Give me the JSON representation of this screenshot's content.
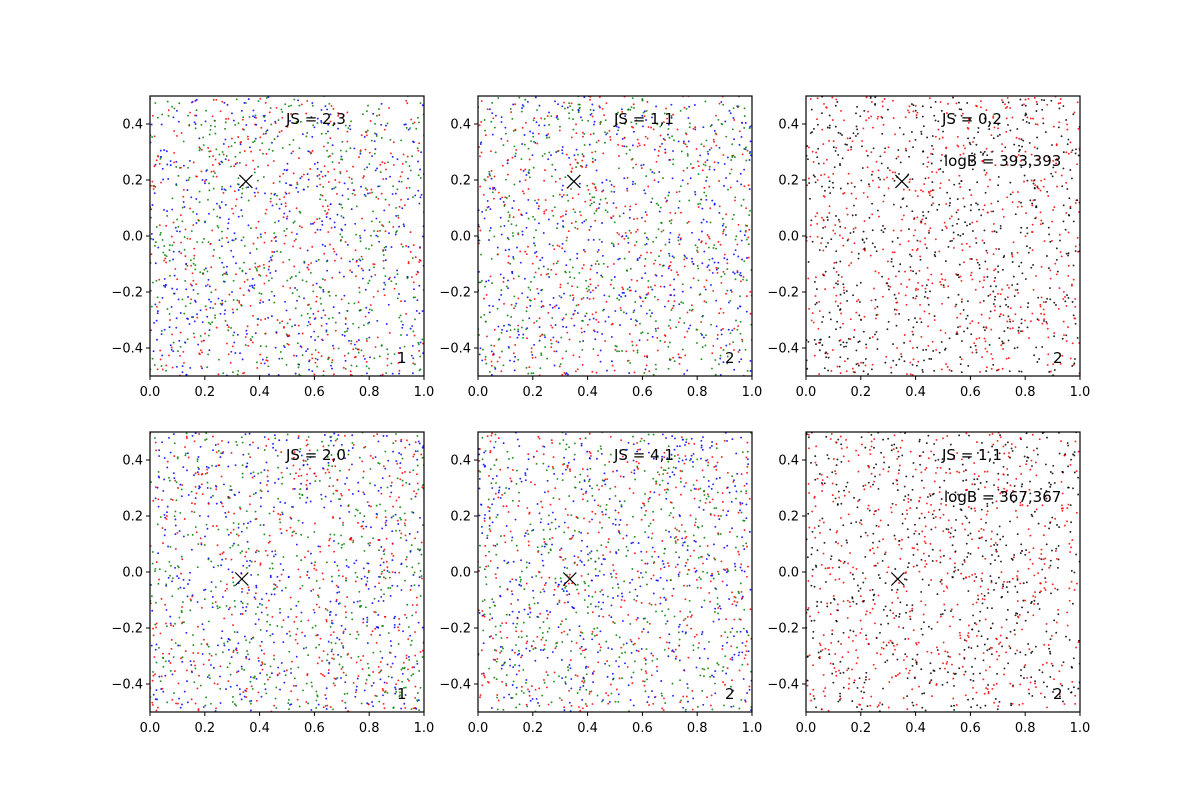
{
  "colors": {
    "series_a": "#ff0000",
    "series_b": "#0000ff",
    "series_c": "#008000",
    "series_d": "#000000",
    "marker": "#000000",
    "frame": "#000000",
    "background": "#ffffff"
  },
  "chart_data": [
    {
      "type": "scatter",
      "panel": "row1-col1",
      "xlim": [
        0.0,
        1.0
      ],
      "ylim": [
        -0.5,
        0.5
      ],
      "x_ticks": [
        0.0,
        0.2,
        0.4,
        0.6,
        0.8,
        1.0
      ],
      "x_tick_labels": [
        "0.0",
        "0.2",
        "0.4",
        "0.6",
        "0.8",
        "1.0"
      ],
      "y_ticks": [
        -0.4,
        -0.2,
        0.0,
        0.2,
        0.4
      ],
      "y_tick_labels": [
        "−0.4",
        "−0.2",
        "0.0",
        "0.2",
        "0.4"
      ],
      "grid": false,
      "point_colors": [
        "#ff0000",
        "#0000ff",
        "#008000"
      ],
      "approx_points": 1500,
      "marker_point": {
        "x": 0.35,
        "y": 0.195,
        "symbol": "x"
      },
      "annotations": {
        "js": "JS = 2,3",
        "logb": "",
        "corner": "1"
      }
    },
    {
      "type": "scatter",
      "panel": "row1-col2",
      "xlim": [
        0.0,
        1.0
      ],
      "ylim": [
        -0.5,
        0.5
      ],
      "x_ticks": [
        0.0,
        0.2,
        0.4,
        0.6,
        0.8,
        1.0
      ],
      "x_tick_labels": [
        "0.0",
        "0.2",
        "0.4",
        "0.6",
        "0.8",
        "1.0"
      ],
      "y_ticks": [
        -0.4,
        -0.2,
        0.0,
        0.2,
        0.4
      ],
      "y_tick_labels": [
        "−0.4",
        "−0.2",
        "0.0",
        "0.2",
        "0.4"
      ],
      "grid": false,
      "point_colors": [
        "#ff0000",
        "#0000ff",
        "#008000"
      ],
      "approx_points": 1500,
      "marker_point": {
        "x": 0.35,
        "y": 0.195,
        "symbol": "x"
      },
      "annotations": {
        "js": "JS = 1,1",
        "logb": "",
        "corner": "2"
      }
    },
    {
      "type": "scatter",
      "panel": "row1-col3",
      "xlim": [
        0.0,
        1.0
      ],
      "ylim": [
        -0.5,
        0.5
      ],
      "x_ticks": [
        0.0,
        0.2,
        0.4,
        0.6,
        0.8,
        1.0
      ],
      "x_tick_labels": [
        "0.0",
        "0.2",
        "0.4",
        "0.6",
        "0.8",
        "1.0"
      ],
      "y_ticks": [
        -0.4,
        -0.2,
        0.0,
        0.2,
        0.4
      ],
      "y_tick_labels": [
        "−0.4",
        "−0.2",
        "0.0",
        "0.2",
        "0.4"
      ],
      "grid": false,
      "point_colors": [
        "#ff0000",
        "#000000"
      ],
      "approx_points": 1300,
      "marker_point": {
        "x": 0.35,
        "y": 0.195,
        "symbol": "x"
      },
      "annotations": {
        "js": "JS = 0,2",
        "logb": "logB = 393,393",
        "corner": "2"
      }
    },
    {
      "type": "scatter",
      "panel": "row2-col1",
      "xlim": [
        0.0,
        1.0
      ],
      "ylim": [
        -0.5,
        0.5
      ],
      "x_ticks": [
        0.0,
        0.2,
        0.4,
        0.6,
        0.8,
        1.0
      ],
      "x_tick_labels": [
        "0.0",
        "0.2",
        "0.4",
        "0.6",
        "0.8",
        "1.0"
      ],
      "y_ticks": [
        -0.4,
        -0.2,
        0.0,
        0.2,
        0.4
      ],
      "y_tick_labels": [
        "−0.4",
        "−0.2",
        "0.0",
        "0.2",
        "0.4"
      ],
      "grid": false,
      "point_colors": [
        "#ff0000",
        "#0000ff",
        "#008000"
      ],
      "approx_points": 1500,
      "marker_point": {
        "x": 0.335,
        "y": -0.025,
        "symbol": "x"
      },
      "annotations": {
        "js": "JS = 2,0",
        "logb": "",
        "corner": "1"
      }
    },
    {
      "type": "scatter",
      "panel": "row2-col2",
      "xlim": [
        0.0,
        1.0
      ],
      "ylim": [
        -0.5,
        0.5
      ],
      "x_ticks": [
        0.0,
        0.2,
        0.4,
        0.6,
        0.8,
        1.0
      ],
      "x_tick_labels": [
        "0.0",
        "0.2",
        "0.4",
        "0.6",
        "0.8",
        "1.0"
      ],
      "y_ticks": [
        -0.4,
        -0.2,
        0.0,
        0.2,
        0.4
      ],
      "y_tick_labels": [
        "−0.4",
        "−0.2",
        "0.0",
        "0.2",
        "0.4"
      ],
      "grid": false,
      "point_colors": [
        "#ff0000",
        "#0000ff",
        "#008000"
      ],
      "approx_points": 1500,
      "marker_point": {
        "x": 0.335,
        "y": -0.025,
        "symbol": "x"
      },
      "annotations": {
        "js": "JS = 4,1",
        "logb": "",
        "corner": "2"
      }
    },
    {
      "type": "scatter",
      "panel": "row2-col3",
      "xlim": [
        0.0,
        1.0
      ],
      "ylim": [
        -0.5,
        0.5
      ],
      "x_ticks": [
        0.0,
        0.2,
        0.4,
        0.6,
        0.8,
        1.0
      ],
      "x_tick_labels": [
        "0.0",
        "0.2",
        "0.4",
        "0.6",
        "0.8",
        "1.0"
      ],
      "y_ticks": [
        -0.4,
        -0.2,
        0.0,
        0.2,
        0.4
      ],
      "y_tick_labels": [
        "−0.4",
        "−0.2",
        "0.0",
        "0.2",
        "0.4"
      ],
      "grid": false,
      "point_colors": [
        "#ff0000",
        "#000000"
      ],
      "approx_points": 1300,
      "marker_point": {
        "x": 0.335,
        "y": -0.025,
        "symbol": "x"
      },
      "annotations": {
        "js": "JS = 1,1",
        "logb": "logB = 367,367",
        "corner": "2"
      }
    }
  ]
}
